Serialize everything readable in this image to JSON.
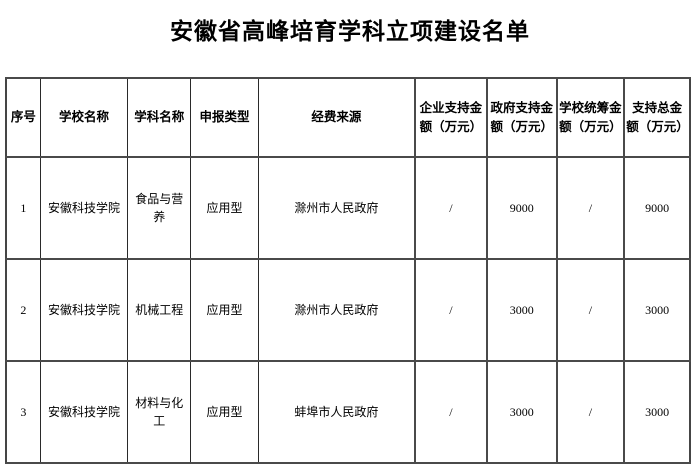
{
  "title": "安徽省高峰培育学科立项建设名单",
  "colors": {
    "background": "#ffffff",
    "text": "#000000",
    "border_horizontal": "#4a4a4a",
    "border_vertical": "#2a2a2a"
  },
  "table": {
    "columns": [
      {
        "key": "index",
        "label": "序号"
      },
      {
        "key": "school",
        "label": "学校名称"
      },
      {
        "key": "discipline",
        "label": "学科名称"
      },
      {
        "key": "apply_type",
        "label": "申报类型"
      },
      {
        "key": "funding_source",
        "label": "经费来源"
      },
      {
        "key": "enterprise_amount",
        "label": "企业支持金额（万元）"
      },
      {
        "key": "government_amount",
        "label": "政府支持金额（万元）"
      },
      {
        "key": "school_amount",
        "label": "学校统筹金额（万元）"
      },
      {
        "key": "total_amount",
        "label": "支持总金额（万元）"
      }
    ],
    "rows": [
      [
        "1",
        "安徽科技学院",
        "食品与营养",
        "应用型",
        "滁州市人民政府",
        "/",
        "9000",
        "/",
        "9000"
      ],
      [
        "2",
        "安徽科技学院",
        "机械工程",
        "应用型",
        "滁州市人民政府",
        "/",
        "3000",
        "/",
        "3000"
      ],
      [
        "3",
        "安徽科技学院",
        "材料与化工",
        "应用型",
        "蚌埠市人民政府",
        "/",
        "3000",
        "/",
        "3000"
      ]
    ]
  }
}
